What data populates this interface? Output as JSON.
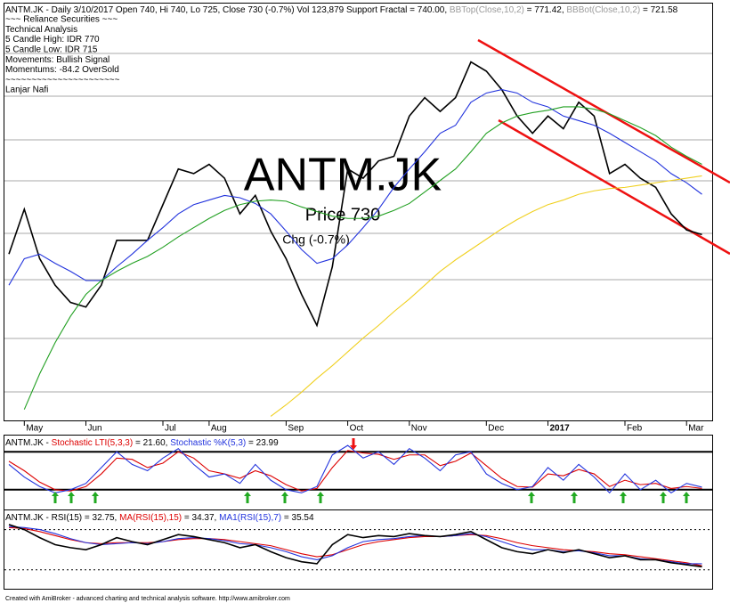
{
  "header": {
    "title_parts": [
      {
        "text": "ANTM.JK - Daily 3/10/2017 Open 740, Hi 740, Lo 725, Close 730 (-0.7%) Vol 123,879 Support Fractal = 740.00, ",
        "color": "#000000"
      },
      {
        "text": "BBTop(Close,10,2)",
        "color": "#9a9a9a"
      },
      {
        "text": " = 771.42, ",
        "color": "#000000"
      },
      {
        "text": "BBBot(Close,10,2)",
        "color": "#9a9a9a"
      },
      {
        "text": " = 721.58",
        "color": "#000000"
      }
    ],
    "info": [
      "~~~ Reliance Securities ~~~",
      "Technical Analysis",
      "5 Candle High: IDR 770",
      "5 Candle Low: IDR 715",
      "Movements: Bullish Signal",
      "Momentums: -84.2 OverSold",
      "~~~~~~~~~~~~~~~~~~~~~~",
      "Lanjar Nafi"
    ]
  },
  "chart_data": [
    {
      "type": "line",
      "watermark": [
        "ANTM.JK",
        "Price 730",
        "Chg (-0.7%)"
      ],
      "categories": [
        null,
        "May",
        null,
        null,
        null,
        "Jun",
        null,
        null,
        null,
        null,
        "Jul",
        null,
        null,
        "Aug",
        null,
        null,
        null,
        null,
        "Sep",
        null,
        null,
        null,
        "Oct",
        null,
        null,
        null,
        "Nov",
        null,
        null,
        null,
        null,
        "Dec",
        null,
        null,
        null,
        "2017",
        null,
        null,
        null,
        null,
        "Feb",
        null,
        null,
        null,
        "Mar",
        null
      ],
      "ylim": [
        570,
        930
      ],
      "series": [
        {
          "color": "#000000",
          "values": [
            713,
            752,
            709,
            686,
            671,
            667,
            686,
            725,
            725,
            725,
            756,
            787,
            783,
            791,
            779,
            748,
            764,
            733,
            709,
            678,
            651,
            702,
            787,
            779,
            794,
            798,
            833,
            849,
            837,
            849,
            880,
            872,
            856,
            833,
            818,
            833,
            822,
            845,
            833,
            783,
            791,
            779,
            771,
            748,
            734,
            730
          ]
        },
        {
          "color": "#2233dd",
          "values": [
            686,
            709,
            713,
            705,
            698,
            690,
            690,
            702,
            713,
            725,
            736,
            748,
            756,
            760,
            764,
            762,
            757,
            748,
            733,
            717,
            705,
            709,
            721,
            736,
            752,
            771,
            787,
            802,
            818,
            825,
            845,
            853,
            856,
            853,
            845,
            841,
            833,
            829,
            825,
            818,
            810,
            802,
            794,
            783,
            775,
            765
          ]
        },
        {
          "color": "#22a022",
          "values": [
            null,
            578,
            609,
            636,
            659,
            678,
            690,
            698,
            705,
            711,
            719,
            728,
            736,
            744,
            751,
            756,
            759,
            760,
            759,
            754,
            750,
            746,
            744,
            744,
            746,
            751,
            757,
            767,
            777,
            787,
            802,
            818,
            827,
            833,
            836,
            838,
            841,
            841,
            839,
            835,
            829,
            823,
            816,
            806,
            798,
            791
          ]
        },
        {
          "color": "#f0d020",
          "values": [
            null,
            null,
            null,
            null,
            null,
            null,
            null,
            null,
            null,
            null,
            null,
            null,
            null,
            null,
            null,
            null,
            null,
            572,
            582,
            593,
            605,
            616,
            628,
            640,
            651,
            663,
            674,
            686,
            698,
            708,
            717,
            726,
            735,
            743,
            750,
            756,
            760,
            765,
            768,
            770,
            771,
            773,
            775,
            777,
            779,
            781
          ]
        }
      ]
    },
    {
      "type": "line",
      "title_parts": [
        {
          "text": "ANTM.JK - ",
          "color": "#000000"
        },
        {
          "text": "Stochastic LTI(5,3,3)",
          "color": "#dd0000"
        },
        {
          "text": " = 21.60, ",
          "color": "#000000"
        },
        {
          "text": "Stochastic %K(5,3)",
          "color": "#2233dd"
        },
        {
          "text": " = 23.99",
          "color": "#000000"
        }
      ],
      "ylim": [
        0,
        100
      ],
      "hlines": [
        80,
        20
      ],
      "series": [
        {
          "color": "#dd0000",
          "values": [
            65,
            50,
            32,
            20,
            18,
            25,
            45,
            70,
            68,
            55,
            62,
            80,
            70,
            50,
            45,
            38,
            50,
            42,
            28,
            18,
            22,
            55,
            82,
            78,
            76,
            68,
            75,
            75,
            58,
            65,
            78,
            58,
            38,
            25,
            24,
            45,
            42,
            52,
            45,
            25,
            35,
            28,
            30,
            22,
            25,
            22
          ]
        },
        {
          "color": "#2233dd",
          "values": [
            60,
            40,
            25,
            15,
            20,
            30,
            55,
            80,
            60,
            50,
            70,
            85,
            60,
            40,
            45,
            30,
            60,
            35,
            20,
            15,
            25,
            75,
            90,
            70,
            80,
            60,
            85,
            70,
            50,
            75,
            80,
            45,
            30,
            20,
            25,
            55,
            35,
            60,
            40,
            15,
            45,
            20,
            35,
            15,
            30,
            24
          ]
        }
      ]
    },
    {
      "type": "line",
      "title_parts": [
        {
          "text": "ANTM.JK - RSI(15) = 32.75, ",
          "color": "#000000"
        },
        {
          "text": "MA(RSI(15),15)",
          "color": "#dd0000"
        },
        {
          "text": " = 34.37, ",
          "color": "#000000"
        },
        {
          "text": "MA1(RSI(15),7)",
          "color": "#2233dd"
        },
        {
          "text": " = 35.54",
          "color": "#000000"
        }
      ],
      "ylim": [
        20,
        90
      ],
      "hlines": [
        70,
        30
      ],
      "series": [
        {
          "color": "#dd0000",
          "values": [
            72,
            71,
            68,
            64,
            60,
            57,
            56,
            57,
            57,
            57,
            58,
            60,
            61,
            61,
            60,
            58,
            56,
            54,
            50,
            46,
            43,
            45,
            50,
            55,
            58,
            60,
            62,
            63,
            63,
            64,
            65,
            64,
            61,
            57,
            54,
            52,
            50,
            49,
            48,
            46,
            45,
            43,
            41,
            39,
            37,
            34
          ]
        },
        {
          "color": "#2233dd",
          "values": [
            73,
            72,
            70,
            66,
            61,
            57,
            55,
            56,
            57,
            56,
            58,
            61,
            62,
            61,
            59,
            56,
            55,
            52,
            48,
            43,
            40,
            44,
            52,
            58,
            60,
            61,
            63,
            64,
            63,
            64,
            66,
            63,
            58,
            53,
            50,
            50,
            48,
            49,
            47,
            44,
            44,
            41,
            40,
            38,
            36,
            36
          ]
        },
        {
          "color": "#000000",
          "values": [
            75,
            70,
            62,
            55,
            52,
            50,
            55,
            62,
            58,
            55,
            60,
            65,
            63,
            60,
            57,
            52,
            55,
            48,
            42,
            38,
            36,
            55,
            65,
            62,
            64,
            63,
            66,
            64,
            63,
            65,
            68,
            60,
            52,
            48,
            46,
            50,
            47,
            50,
            46,
            42,
            44,
            40,
            40,
            37,
            35,
            33
          ]
        }
      ]
    }
  ],
  "footer": "Created with AmiBroker - advanced charting and technical analysis software. http://www.amibroker.com"
}
